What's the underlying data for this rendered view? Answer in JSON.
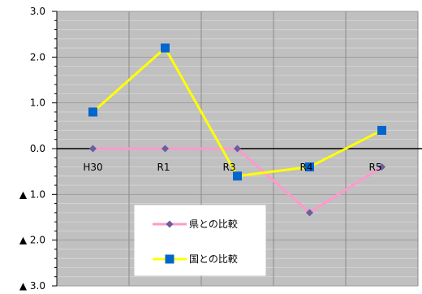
{
  "chart_data": {
    "type": "line",
    "categories": [
      "H30",
      "R1",
      "R3",
      "R4",
      "R5"
    ],
    "ylim": [
      -3.0,
      3.0
    ],
    "y_major_step": 1.0,
    "y_minor_step": 0.2,
    "y_tick_labels": [
      "3.0",
      "2.0",
      "1.0",
      "0.0",
      "▲ 1.0",
      "▲ 2.0",
      "▲ 3.0"
    ],
    "grid": true,
    "legend_position": "bottom-center",
    "series": [
      {
        "name": "県との比較",
        "values": [
          0.0,
          0.0,
          0.0,
          -1.4,
          -0.4
        ],
        "line_color": "#ff99cc",
        "marker": "diamond",
        "marker_color": "#6d5c9e"
      },
      {
        "name": "国との比較",
        "values": [
          0.8,
          2.2,
          -0.6,
          -0.4,
          0.4
        ],
        "line_color": "#ffff00",
        "marker": "square",
        "marker_color": "#0066cc"
      }
    ],
    "background_color": "#c0c0c0"
  }
}
